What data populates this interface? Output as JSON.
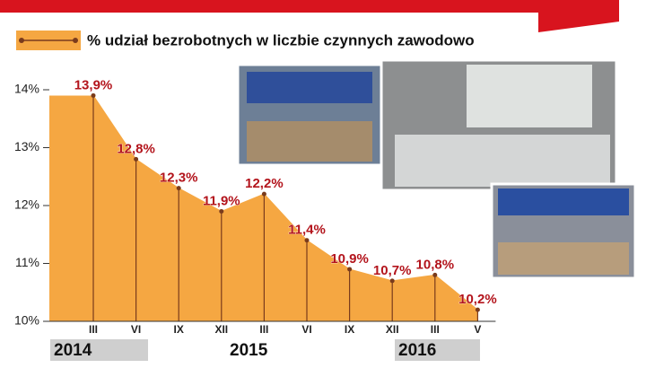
{
  "chart_data": {
    "type": "area",
    "series": [
      {
        "name": "% udział bezrobotnych w liczbie czynnych zawodowo",
        "color": "#f5a742",
        "line_color": "#7a3b1c",
        "values": [
          13.9,
          12.8,
          12.3,
          11.9,
          12.2,
          11.4,
          10.9,
          10.7,
          10.8,
          10.2
        ],
        "value_labels": [
          "13,9%",
          "12,8%",
          "12,3%",
          "11,9%",
          "12,2%",
          "11,4%",
          "10,9%",
          "10,7%",
          "10,8%",
          "10,2%"
        ]
      }
    ],
    "categories": [
      "III",
      "VI",
      "IX",
      "XII",
      "III",
      "VI",
      "IX",
      "XII",
      "III",
      "V"
    ],
    "years": [
      "2014",
      "2015",
      "2016"
    ],
    "ylim": [
      10,
      14
    ],
    "yticks": [
      {
        "value": 10,
        "label": "10%"
      },
      {
        "value": 11,
        "label": "11%"
      },
      {
        "value": 12,
        "label": "12%"
      },
      {
        "value": 13,
        "label": "13%"
      },
      {
        "value": 14,
        "label": "14%"
      }
    ],
    "label_color": "#b3141c"
  }
}
